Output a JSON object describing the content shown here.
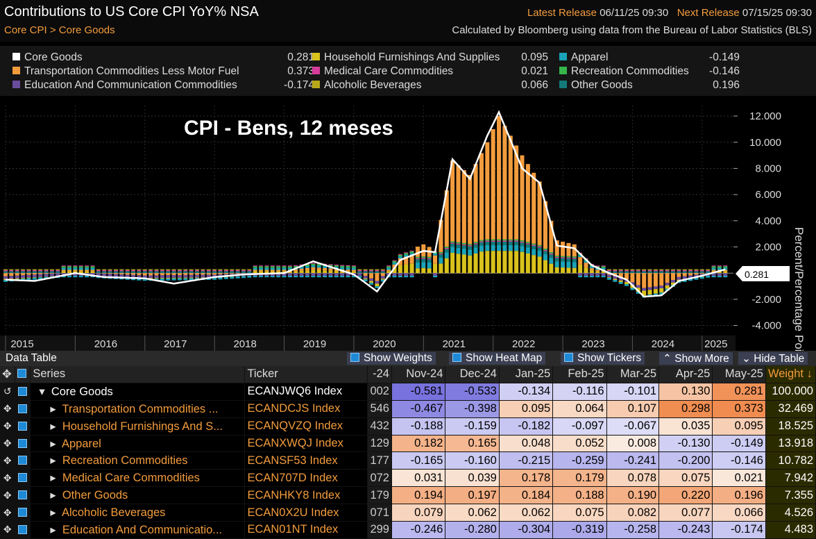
{
  "header": {
    "title": "Contributions to US Core CPI YoY% NSA",
    "breadcrumb": "Core CPI > Core Goods",
    "latest_release_label": "Latest Release",
    "latest_release_value": "06/11/25 09:30",
    "next_release_label": "Next Release",
    "next_release_value": "07/15/25 09:30",
    "source_note": "Calculated by Bloomberg using data from the Bureau of Labor Statistics (BLS)"
  },
  "legend": [
    {
      "name": "Core Goods",
      "value": "0.281",
      "color": "#ffffff"
    },
    {
      "name": "Transportation Commodities Less Motor Fuel",
      "value": "0.373",
      "color": "#f39c3d"
    },
    {
      "name": "Education And Communication Commodities",
      "value": "-0.174",
      "color": "#6a4c9c"
    },
    {
      "name": "Household Furnishings And Supplies",
      "value": "0.095",
      "color": "#d9c21c"
    },
    {
      "name": "Medical Care Commodities",
      "value": "0.021",
      "color": "#d63b9a"
    },
    {
      "name": "Alcoholic Beverages",
      "value": "0.066",
      "color": "#b7a81a"
    },
    {
      "name": "Apparel",
      "value": "-0.149",
      "color": "#1aa3b8"
    },
    {
      "name": "Recreation Commodities",
      "value": "-0.146",
      "color": "#35b54a"
    },
    {
      "name": "Other Goods",
      "value": "0.196",
      "color": "#137a7a"
    }
  ],
  "overlay_text": "CPI - Bens, 12 meses",
  "chart_data": {
    "type": "bar",
    "ylabel": "Percent/Percentage Point",
    "ylim": [
      -4.5,
      12.8
    ],
    "yticks": [
      "12.000",
      "10.000",
      "8.000",
      "6.000",
      "4.000",
      "2.000",
      "-2.000",
      "-4.000"
    ],
    "x_years": [
      "2015",
      "2016",
      "2017",
      "2018",
      "2019",
      "2020",
      "2021",
      "2022",
      "2023",
      "2024",
      "2025"
    ],
    "last_value_label": "0.281",
    "core_goods_line_points": [
      [
        "2015-01",
        -0.5
      ],
      [
        "2015-06",
        -0.6
      ],
      [
        "2016-01",
        0.0
      ],
      [
        "2016-06",
        -0.3
      ],
      [
        "2017-01",
        -0.4
      ],
      [
        "2017-06",
        -0.8
      ],
      [
        "2018-01",
        -0.3
      ],
      [
        "2018-06",
        -0.1
      ],
      [
        "2019-01",
        0.0
      ],
      [
        "2019-06",
        0.9
      ],
      [
        "2020-01",
        -0.1
      ],
      [
        "2020-05",
        -1.4
      ],
      [
        "2020-09",
        1.0
      ],
      [
        "2021-01",
        1.7
      ],
      [
        "2021-03",
        1.6
      ],
      [
        "2021-06",
        8.7
      ],
      [
        "2021-09",
        7.2
      ],
      [
        "2021-12",
        10.5
      ],
      [
        "2022-02",
        12.3
      ],
      [
        "2022-06",
        8.0
      ],
      [
        "2022-09",
        6.9
      ],
      [
        "2022-12",
        2.1
      ],
      [
        "2023-03",
        1.9
      ],
      [
        "2023-06",
        0.6
      ],
      [
        "2023-09",
        0.0
      ],
      [
        "2023-12",
        -0.5
      ],
      [
        "2024-03",
        -1.8
      ],
      [
        "2024-06",
        -1.7
      ],
      [
        "2024-09",
        -0.6
      ],
      [
        "2025-01",
        -0.2
      ],
      [
        "2025-05",
        0.281
      ]
    ],
    "bar_stack_points": [
      [
        "2015-01",
        -0.4
      ],
      [
        "2016-01",
        0.1
      ],
      [
        "2017-01",
        -0.3
      ],
      [
        "2018-01",
        -0.2
      ],
      [
        "2019-01",
        0.2
      ],
      [
        "2019-06",
        0.6
      ],
      [
        "2020-01",
        0.3
      ],
      [
        "2020-05",
        -1.0
      ],
      [
        "2020-09",
        1.5
      ],
      [
        "2021-01",
        2.2
      ],
      [
        "2021-03",
        1.8
      ],
      [
        "2021-06",
        8.6
      ],
      [
        "2021-09",
        7.5
      ],
      [
        "2021-12",
        10.0
      ],
      [
        "2022-02",
        12.0
      ],
      [
        "2022-06",
        9.0
      ],
      [
        "2022-09",
        7.0
      ],
      [
        "2022-12",
        2.5
      ],
      [
        "2023-03",
        2.2
      ],
      [
        "2023-06",
        0.5
      ],
      [
        "2023-09",
        -0.2
      ],
      [
        "2023-12",
        -0.8
      ],
      [
        "2024-03",
        -1.9
      ],
      [
        "2024-06",
        -1.6
      ],
      [
        "2024-09",
        -0.5
      ],
      [
        "2025-01",
        -0.1
      ],
      [
        "2025-05",
        0.3
      ]
    ]
  },
  "table_bar": {
    "title": "Data Table",
    "show_weights": "Show Weights",
    "show_heat_map": "Show Heat Map",
    "show_tickers": "Show Tickers",
    "show_more": "Show More",
    "hide_table": "Hide Table"
  },
  "table": {
    "columns": {
      "series": "Series",
      "ticker": "Ticker",
      "weight": "Weight"
    },
    "months": [
      "-24",
      "Nov-24",
      "Dec-24",
      "Jan-25",
      "Feb-25",
      "Mar-25",
      "Apr-25",
      "May-25"
    ],
    "rows": [
      {
        "series": "Core Goods",
        "ticker": "ECANJWQ6 Index",
        "values": [
          "002",
          "-0.581",
          "-0.533",
          "-0.134",
          "-0.116",
          "-0.101",
          "0.130",
          "0.281"
        ],
        "weight": "100.000"
      },
      {
        "series": "Transportation Commodities ...",
        "ticker": "ECANDCJS Index",
        "values": [
          "546",
          "-0.467",
          "-0.398",
          "0.095",
          "0.064",
          "0.107",
          "0.298",
          "0.373"
        ],
        "weight": "32.469"
      },
      {
        "series": "Household Furnishings And S...",
        "ticker": "ECANQVZQ Index",
        "values": [
          "432",
          "-0.188",
          "-0.159",
          "-0.182",
          "-0.097",
          "-0.067",
          "0.035",
          "0.095"
        ],
        "weight": "18.525"
      },
      {
        "series": "Apparel",
        "ticker": "ECANXWQJ Index",
        "values": [
          "129",
          "0.182",
          "0.165",
          "0.048",
          "0.052",
          "0.008",
          "-0.130",
          "-0.149"
        ],
        "weight": "13.918"
      },
      {
        "series": "Recreation Commodities",
        "ticker": "ECANSF53 Index",
        "values": [
          "177",
          "-0.165",
          "-0.160",
          "-0.215",
          "-0.259",
          "-0.241",
          "-0.200",
          "-0.146"
        ],
        "weight": "10.782"
      },
      {
        "series": "Medical Care Commodities",
        "ticker": "ECAN707D Index",
        "values": [
          "072",
          "0.031",
          "0.039",
          "0.178",
          "0.179",
          "0.078",
          "0.075",
          "0.021"
        ],
        "weight": "7.942"
      },
      {
        "series": "Other Goods",
        "ticker": "ECANHKY8 Index",
        "values": [
          "179",
          "0.194",
          "0.197",
          "0.184",
          "0.188",
          "0.190",
          "0.220",
          "0.196"
        ],
        "weight": "7.355"
      },
      {
        "series": "Alcoholic Beverages",
        "ticker": "ECAN0X2U Index",
        "values": [
          "071",
          "0.079",
          "0.062",
          "0.062",
          "0.075",
          "0.082",
          "0.077",
          "0.066"
        ],
        "weight": "4.526"
      },
      {
        "series": "Education And Communicatio...",
        "ticker": "ECAN01NT Index",
        "values": [
          "299",
          "-0.246",
          "-0.280",
          "-0.304",
          "-0.319",
          "-0.258",
          "-0.243",
          "-0.174"
        ],
        "weight": "4.483"
      }
    ]
  }
}
